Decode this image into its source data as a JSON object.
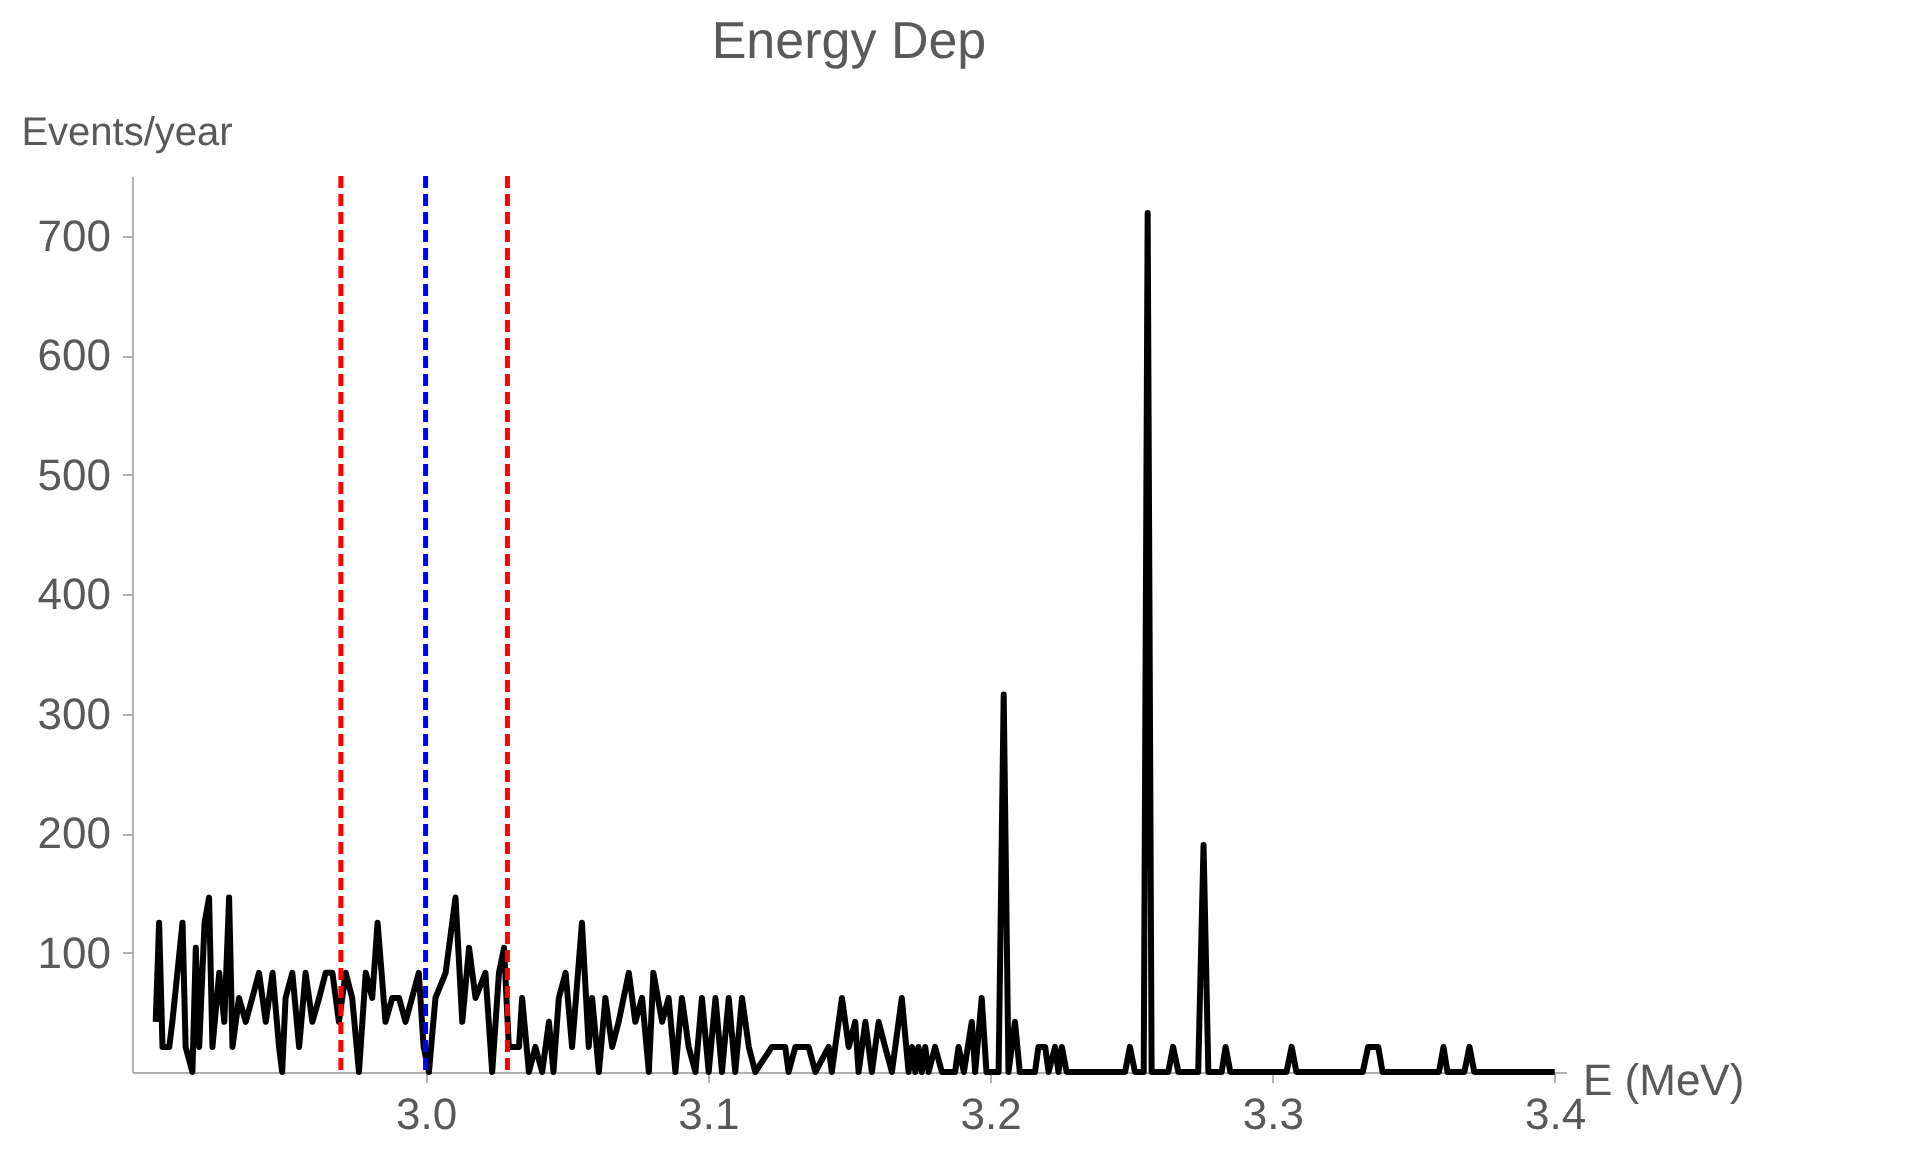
{
  "chart_data": {
    "type": "line",
    "title": "Energy Dep",
    "xlabel": "E (MeV)",
    "ylabel": "Events/year",
    "xlim": [
      2.896,
      3.404
    ],
    "ylim": [
      0,
      750
    ],
    "xticks": [
      {
        "value": 3.0,
        "label": "3.0"
      },
      3.1,
      3.2,
      3.3,
      3.4
    ],
    "yticks": [
      100,
      200,
      300,
      400,
      500,
      600,
      700
    ],
    "line_style": "solid",
    "series": [
      {
        "color": "#000000",
        "x": [
          2.9044,
          2.9056,
          2.9068,
          2.9092,
          2.9103,
          2.9139,
          2.915,
          2.9174,
          2.9186,
          2.9198,
          2.9217,
          2.9233,
          2.9245,
          2.9269,
          2.9287,
          2.9304,
          2.9316,
          2.9339,
          2.9363,
          2.9386,
          2.941,
          2.9434,
          2.9458,
          2.9481,
          2.9492,
          2.9504,
          2.9528,
          2.9552,
          2.9575,
          2.9599,
          2.9623,
          2.9646,
          2.967,
          2.9693,
          2.9717,
          2.974,
          2.9764,
          2.9788,
          2.9811,
          2.983,
          2.9858,
          2.9882,
          2.9906,
          2.9929,
          2.9976,
          2.9993,
          3.0012,
          3.0035,
          3.0071,
          3.0106,
          3.013,
          3.0154,
          3.0177,
          3.0212,
          3.0236,
          3.026,
          3.0278,
          3.0295,
          3.0331,
          3.0342,
          3.0366,
          3.0389,
          3.0413,
          3.0437,
          3.0453,
          3.0472,
          3.0496,
          3.0519,
          3.0554,
          3.0578,
          3.059,
          3.0614,
          3.0637,
          3.0661,
          3.0684,
          3.072,
          3.0743,
          3.0767,
          3.0791,
          3.0807,
          3.0838,
          3.0861,
          3.0885,
          3.0908,
          3.0932,
          3.0956,
          3.0979,
          3.1003,
          3.1027,
          3.105,
          3.1074,
          3.1097,
          3.1121,
          3.1145,
          3.1168,
          3.1227,
          3.1274,
          3.1286,
          3.131,
          3.1357,
          3.1381,
          3.1428,
          3.1439,
          3.1475,
          3.1499,
          3.1522,
          3.1534,
          3.1558,
          3.1581,
          3.1605,
          3.1628,
          3.1652,
          3.1687,
          3.1711,
          3.1723,
          3.1735,
          3.1746,
          3.1758,
          3.177,
          3.1782,
          3.1805,
          3.1829,
          3.1876,
          3.1888,
          3.1907,
          3.1935,
          3.1947,
          3.197,
          3.1987,
          3.203,
          3.2048,
          3.2065,
          3.2088,
          3.2105,
          3.2159,
          3.2171,
          3.2195,
          3.2207,
          3.223,
          3.2242,
          3.2254,
          3.2271,
          3.2478,
          3.2495,
          3.2513,
          3.2544,
          3.2558,
          3.2572,
          3.2631,
          3.2648,
          3.2667,
          3.2737,
          3.2756,
          3.2773,
          3.282,
          3.2834,
          3.2851,
          3.305,
          3.3068,
          3.3085,
          3.332,
          3.3339,
          3.3375,
          3.339,
          3.359,
          3.3606,
          3.362,
          3.368,
          3.3698,
          3.3715,
          3.4
        ],
        "values": [
          42,
          125,
          21,
          21,
          42,
          125,
          21,
          0,
          104,
          21,
          125,
          146,
          21,
          83,
          42,
          146,
          21,
          62,
          42,
          62,
          83,
          42,
          83,
          21,
          0,
          62,
          83,
          21,
          83,
          42,
          62,
          83,
          83,
          42,
          83,
          62,
          0,
          83,
          62,
          125,
          42,
          62,
          62,
          42,
          83,
          21,
          0,
          62,
          83,
          146,
          42,
          104,
          62,
          83,
          0,
          83,
          104,
          21,
          21,
          62,
          0,
          21,
          0,
          42,
          0,
          62,
          83,
          21,
          125,
          21,
          62,
          0,
          62,
          21,
          42,
          83,
          42,
          62,
          0,
          83,
          42,
          62,
          0,
          62,
          21,
          0,
          62,
          0,
          62,
          0,
          62,
          0,
          62,
          21,
          0,
          21,
          21,
          0,
          21,
          21,
          0,
          21,
          0,
          62,
          21,
          42,
          0,
          42,
          0,
          42,
          21,
          0,
          62,
          0,
          21,
          0,
          21,
          0,
          21,
          0,
          21,
          0,
          0,
          21,
          0,
          42,
          0,
          62,
          0,
          0,
          316,
          0,
          42,
          0,
          0,
          21,
          21,
          0,
          21,
          0,
          21,
          0,
          0,
          21,
          0,
          0,
          719,
          0,
          0,
          21,
          0,
          0,
          190,
          0,
          0,
          21,
          0,
          0,
          21,
          0,
          0,
          21,
          21,
          0,
          0,
          21,
          0,
          0,
          21,
          0,
          0
        ]
      }
    ],
    "ref_lines": [
      {
        "axis": "x",
        "value": 2.97,
        "color": "#ff0000",
        "line_style": "dashed"
      },
      {
        "axis": "x",
        "value": 3.0,
        "color": "#0000ff",
        "line_style": "dashed"
      },
      {
        "axis": "x",
        "value": 3.029,
        "color": "#ff0000",
        "line_style": "dashed"
      }
    ]
  }
}
